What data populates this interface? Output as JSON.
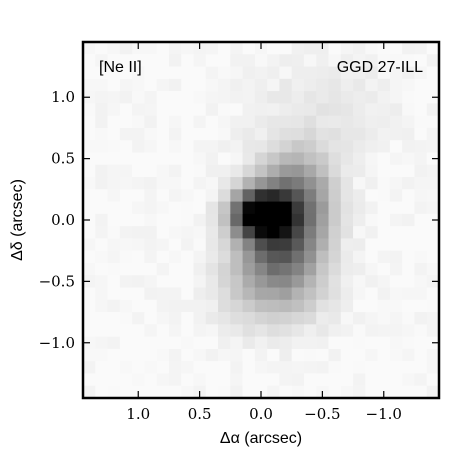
{
  "chart_data": {
    "type": "heatmap",
    "xlabel": "Δα (arcsec)",
    "ylabel": "Δδ (arcsec)",
    "xlim": [
      1.45,
      -1.45
    ],
    "ylim": [
      -1.45,
      1.45
    ],
    "x_ticks": [
      {
        "value": 1.0,
        "label": "1.0"
      },
      {
        "value": 0.5,
        "label": "0.5"
      },
      {
        "value": 0.0,
        "label": "0.0"
      },
      {
        "value": -0.5,
        "label": "−0.5"
      },
      {
        "value": -1.0,
        "label": "−1.0"
      }
    ],
    "y_ticks": [
      {
        "value": 1.0,
        "label": "1.0"
      },
      {
        "value": 0.5,
        "label": "0.5"
      },
      {
        "value": 0.0,
        "label": "0.0"
      },
      {
        "value": -0.5,
        "label": "−0.5"
      },
      {
        "value": -1.0,
        "label": "−1.0"
      }
    ],
    "annotations": [
      {
        "text": "[Ne II]",
        "position": "top-left"
      },
      {
        "text": "GGD 27-ILL",
        "position": "top-right"
      }
    ],
    "grid": false,
    "colormap": "gray_r",
    "pixel_scale_arcsec": 0.1,
    "components": [
      {
        "x": 0.0,
        "y": 0.05,
        "sigma_x": 0.15,
        "sigma_y": 0.12,
        "amplitude": 1.0
      },
      {
        "x": -0.15,
        "y": -0.15,
        "sigma_x": 0.22,
        "sigma_y": 0.28,
        "amplitude": 0.55
      },
      {
        "x": -0.3,
        "y": 0.2,
        "sigma_x": 0.2,
        "sigma_y": 0.25,
        "amplitude": 0.35
      },
      {
        "x": -0.1,
        "y": -0.55,
        "sigma_x": 0.3,
        "sigma_y": 0.25,
        "amplitude": 0.15
      },
      {
        "x": -0.5,
        "y": 0.9,
        "sigma_x": 0.4,
        "sigma_y": 0.3,
        "amplitude": 0.05
      }
    ]
  }
}
